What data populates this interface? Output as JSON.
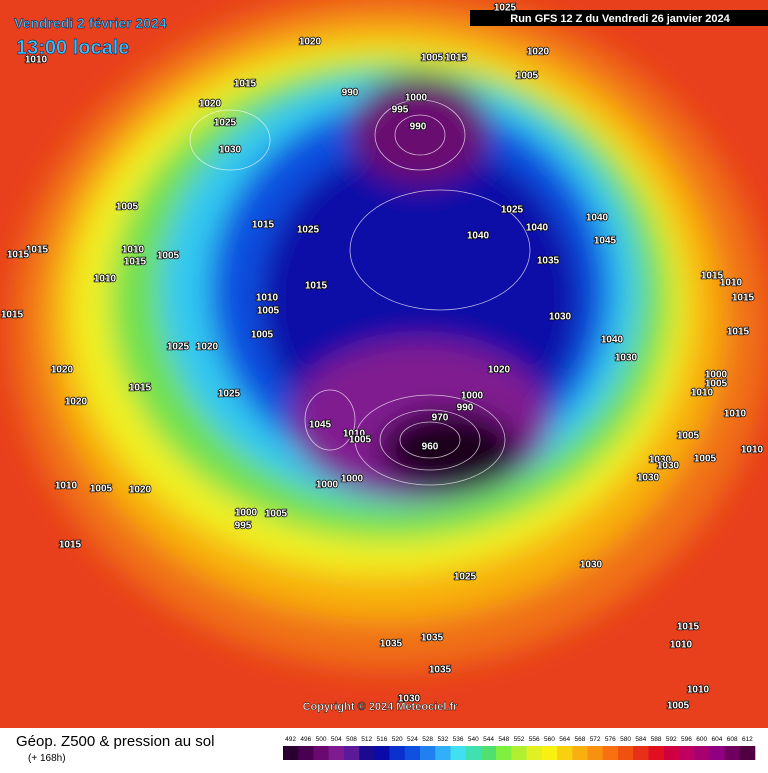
{
  "header": {
    "date": "Vendredi 2 février 2024",
    "time": "13:00 locale",
    "run": "Run GFS 12 Z du Vendredi 26 janvier 2024"
  },
  "map": {
    "pressure_labels": [
      "1020",
      "1025",
      "1010",
      "1005",
      "1015",
      "1020",
      "1005",
      "1015",
      "990",
      "1000",
      "995",
      "1020",
      "1025",
      "990",
      "1030",
      "1005",
      "1015",
      "1025",
      "1025",
      "1040",
      "1040",
      "1040",
      "1045",
      "1015",
      "1010",
      "1015",
      "1005",
      "1015",
      "1035",
      "1010",
      "1015",
      "1010",
      "1015",
      "1010",
      "1005",
      "1015",
      "1015",
      "1030",
      "1005",
      "1015",
      "1025",
      "1020",
      "1040",
      "1030",
      "1020",
      "1020",
      "1015",
      "1000",
      "1005",
      "1010",
      "1025",
      "1000",
      "1020",
      "1045",
      "1010",
      "1005",
      "970",
      "990",
      "960",
      "1010",
      "1005",
      "1010",
      "1030",
      "1030",
      "1005",
      "1030",
      "1000",
      "1000",
      "1010",
      "1005",
      "1020",
      "1000",
      "1005",
      "995",
      "1015",
      "1030",
      "1025",
      "1035",
      "1035",
      "1015",
      "1010",
      "1035",
      "1010",
      "1030",
      "1005"
    ],
    "copyright": "Copyright © 2024 Meteociel.fr"
  },
  "footer": {
    "title": "Géop. Z500 & pression au sol",
    "subtitle": "(+ 168h)",
    "scale": {
      "labels": [
        492,
        496,
        500,
        504,
        508,
        512,
        516,
        520,
        524,
        528,
        532,
        536,
        540,
        544,
        548,
        552,
        556,
        560,
        564,
        568,
        572,
        576,
        580,
        584,
        588,
        592,
        596,
        600,
        604,
        608,
        612
      ],
      "colors": [
        "#2a0030",
        "#4a0050",
        "#6a0a70",
        "#801a90",
        "#5a1a9a",
        "#1a0a90",
        "#0a0aa8",
        "#0a30d0",
        "#1050e0",
        "#2080f0",
        "#30b0f8",
        "#40e0f0",
        "#40e0b0",
        "#50e070",
        "#80f040",
        "#b0f030",
        "#e0f020",
        "#f8f010",
        "#f8d010",
        "#f8b010",
        "#f89010",
        "#f87010",
        "#f05010",
        "#e83018",
        "#e01020",
        "#d00040",
        "#c00060",
        "#a80070",
        "#900080",
        "#700060",
        "#500040"
      ]
    }
  }
}
